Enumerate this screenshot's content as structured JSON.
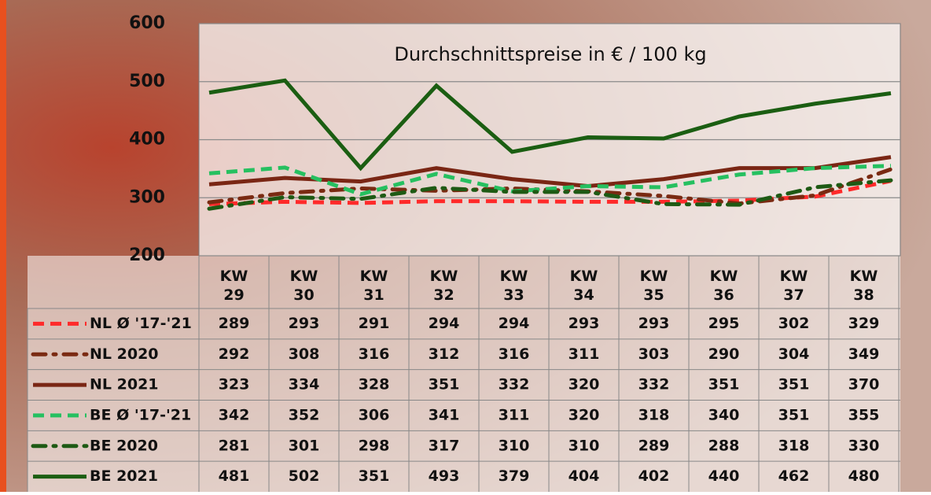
{
  "chart_data": {
    "type": "line",
    "title": "Durchschnittspreise in € / 100 kg",
    "categories": [
      "KW 29",
      "KW 30",
      "KW 31",
      "KW 32",
      "KW 33",
      "KW 34",
      "KW 35",
      "KW 36",
      "KW 37",
      "KW 38"
    ],
    "ylim": [
      200,
      600
    ],
    "yticks": [
      200,
      300,
      400,
      500,
      600
    ],
    "grid": true,
    "series": [
      {
        "name": "NL Ø '17-'21",
        "color": "#ff2a2a",
        "dash": "dashed",
        "values": [
          289,
          293,
          291,
          294,
          294,
          293,
          293,
          295,
          302,
          329
        ]
      },
      {
        "name": "NL 2020",
        "color": "#7a2a12",
        "dash": "dashdot",
        "values": [
          292,
          308,
          316,
          312,
          316,
          311,
          303,
          290,
          304,
          349
        ]
      },
      {
        "name": "NL 2021",
        "color": "#7a2614",
        "dash": "solid",
        "values": [
          323,
          334,
          328,
          351,
          332,
          320,
          332,
          351,
          351,
          370
        ]
      },
      {
        "name": "BE Ø '17-'21",
        "color": "#26c060",
        "dash": "dashed",
        "values": [
          342,
          352,
          306,
          341,
          311,
          320,
          318,
          340,
          351,
          355
        ]
      },
      {
        "name": "BE 2020",
        "color": "#1e5a14",
        "dash": "dashdot",
        "values": [
          281,
          301,
          298,
          317,
          310,
          310,
          289,
          288,
          318,
          330
        ]
      },
      {
        "name": "BE 2021",
        "color": "#1b5e12",
        "dash": "solid",
        "values": [
          481,
          502,
          351,
          493,
          379,
          404,
          402,
          440,
          462,
          480
        ]
      }
    ]
  }
}
